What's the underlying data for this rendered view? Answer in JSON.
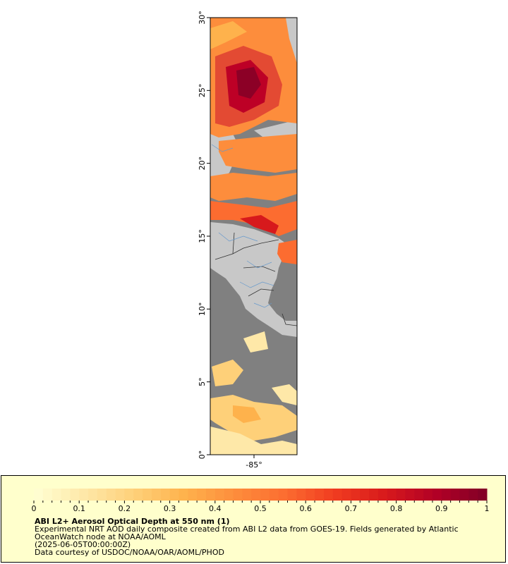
{
  "map": {
    "lat_ticks": [
      "0°",
      "5°",
      "10°",
      "15°",
      "20°",
      "25°",
      "30°"
    ],
    "lon_ticks": [
      "-85°"
    ],
    "colors": {
      "land": "#c8c8c8",
      "no_data": "#808080",
      "country_border": "#333333",
      "rivers": "#6699cc",
      "frame": "#000000"
    }
  },
  "legend": {
    "colorbar_ticks": [
      "0",
      "0.1",
      "0.2",
      "0.3",
      "0.4",
      "0.5",
      "0.6",
      "0.7",
      "0.8",
      "0.9",
      "1"
    ],
    "colorbar_colors": [
      "#ffffd4",
      "#fee8a8",
      "#fed079",
      "#feb24c",
      "#fd8d3c",
      "#fc6c30",
      "#f03b20",
      "#d7191c",
      "#b10026",
      "#800026"
    ],
    "title": "ABI L2+ Aerosol Optical Depth at 550 nm (1)",
    "description_line1": "Experimental NRT AOD daily composite created from ABI L2 data from GOES-19. Fields generated by Atlantic",
    "description_line2": "OceanWatch node at NOAA/AOML",
    "date": "(2025-06-05T00:00:00Z)",
    "credit": "Data courtesy of USDOC/NOAA/OAR/AOML/PHOD",
    "background": "#ffffcc"
  }
}
